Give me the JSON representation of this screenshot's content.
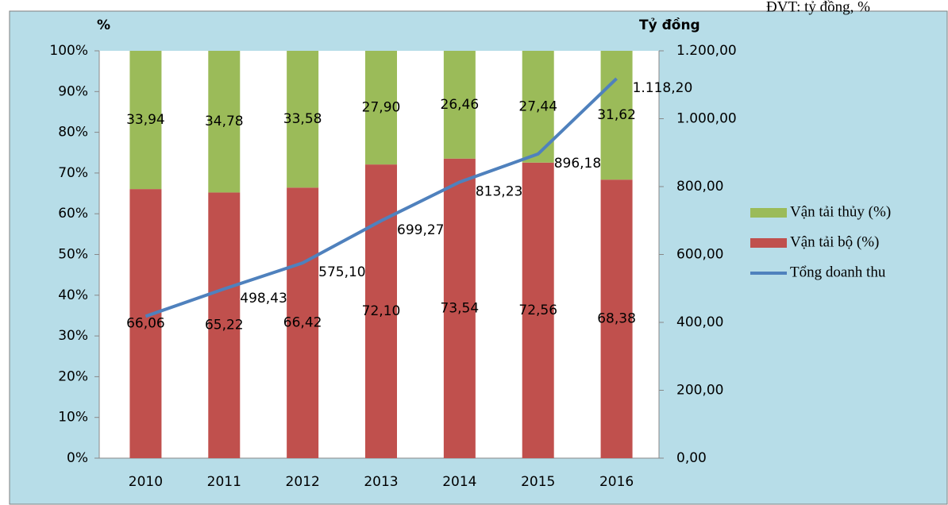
{
  "chart_data": {
    "type": "bar-line",
    "note_text": "ĐVT: tỷ đồng, %",
    "y_label": "%",
    "y2_label": "Tỷ đồng",
    "categories": [
      "2010",
      "2011",
      "2012",
      "2013",
      "2014",
      "2015",
      "2016"
    ],
    "ylim": [
      0,
      100
    ],
    "yticks": [
      {
        "value": 0,
        "label": "0%"
      },
      {
        "value": 10,
        "label": "10%"
      },
      {
        "value": 20,
        "label": "20%"
      },
      {
        "value": 30,
        "label": "30%"
      },
      {
        "value": 40,
        "label": "40%"
      },
      {
        "value": 50,
        "label": "50%"
      },
      {
        "value": 60,
        "label": "60%"
      },
      {
        "value": 70,
        "label": "70%"
      },
      {
        "value": 80,
        "label": "80%"
      },
      {
        "value": 90,
        "label": "90%"
      },
      {
        "value": 100,
        "label": "100%"
      }
    ],
    "y2lim": [
      0,
      1200
    ],
    "y2ticks": [
      {
        "value": 0,
        "label": "0,00"
      },
      {
        "value": 200,
        "label": "200,00"
      },
      {
        "value": 400,
        "label": "400,00"
      },
      {
        "value": 600,
        "label": "600,00"
      },
      {
        "value": 800,
        "label": "800,00"
      },
      {
        "value": 1000,
        "label": "1.000,00"
      },
      {
        "value": 1200,
        "label": "1.200,00"
      }
    ],
    "series": [
      {
        "name": "Vận tải bộ (%)",
        "kind": "bar",
        "color": "#c0504d",
        "values": [
          66.06,
          65.22,
          66.42,
          72.1,
          73.54,
          72.56,
          68.38
        ],
        "value_labels": [
          "66,06",
          "65,22",
          "66,42",
          "72,10",
          "73,54",
          "72,56",
          "68,38"
        ]
      },
      {
        "name": "Vận tải thủy (%)",
        "kind": "bar",
        "color": "#9bbb59",
        "values": [
          33.94,
          34.78,
          33.58,
          27.9,
          26.46,
          27.44,
          31.62
        ],
        "value_labels": [
          "33,94",
          "34,78",
          "33,58",
          "27,90",
          "26,46",
          "27,44",
          "31,62"
        ]
      },
      {
        "name": "Tổng doanh thu",
        "kind": "line",
        "axis": "y2",
        "color": "#4f81bd",
        "values": [
          418,
          498.43,
          575.1,
          699.27,
          813.23,
          896.18,
          1118.2
        ],
        "value_labels": [
          null,
          "498,43",
          "575,10",
          "699,27",
          "813,23",
          "896,18",
          "1.118,20"
        ]
      }
    ]
  }
}
